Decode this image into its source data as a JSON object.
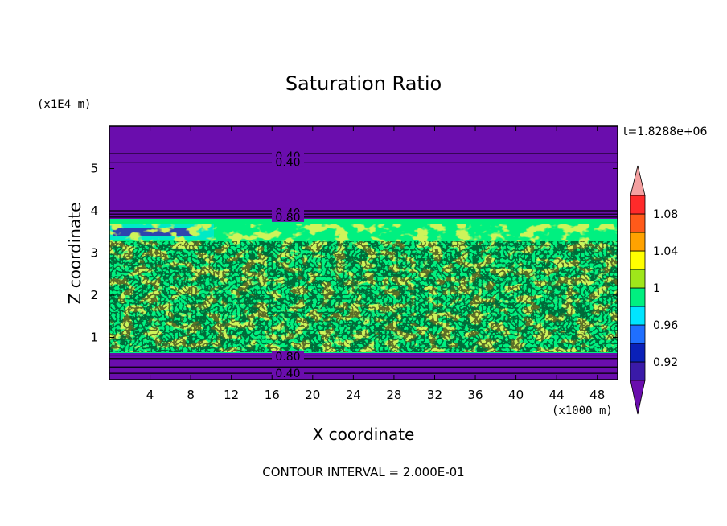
{
  "chart_data": {
    "type": "heatmap",
    "title": "Saturation Ratio",
    "xlabel": "X coordinate",
    "ylabel": "Z coordinate",
    "x_unit": "(x1000 m)",
    "y_unit": "(x1E4 m)",
    "time_label": "t=1.8288e+06",
    "footer": "CONTOUR INTERVAL = 2.000E-01",
    "xlim": [
      0,
      50
    ],
    "ylim": [
      0,
      6
    ],
    "x_ticks": [
      "4",
      "8",
      "12",
      "16",
      "20",
      "24",
      "28",
      "32",
      "36",
      "40",
      "44",
      "48"
    ],
    "y_ticks": [
      "1",
      "2",
      "3",
      "4",
      "5"
    ],
    "colorbar": {
      "levels": [
        0.9,
        0.92,
        0.94,
        0.96,
        0.98,
        1.0,
        1.02,
        1.04,
        1.06,
        1.08,
        1.1
      ],
      "labels": [
        "0.92",
        "0.96",
        "1",
        "1.04",
        "1.08"
      ],
      "colors": [
        "#6a0dad",
        "#3a1aa8",
        "#0a20b8",
        "#1f6fff",
        "#00e5ff",
        "#00f080",
        "#9fe61a",
        "#ffff00",
        "#ffa200",
        "#ff5a1a",
        "#ff2a2a",
        "#f4a0a0"
      ]
    },
    "contour_labels": [
      {
        "text": "0.40",
        "z": 5.3
      },
      {
        "text": "0.40",
        "z": 5.15
      },
      {
        "text": "0.40",
        "z": 3.95
      },
      {
        "text": "0.80",
        "z": 3.85
      },
      {
        "text": "0.80",
        "z": 0.55
      },
      {
        "text": "0.40",
        "z": 0.15
      }
    ]
  }
}
